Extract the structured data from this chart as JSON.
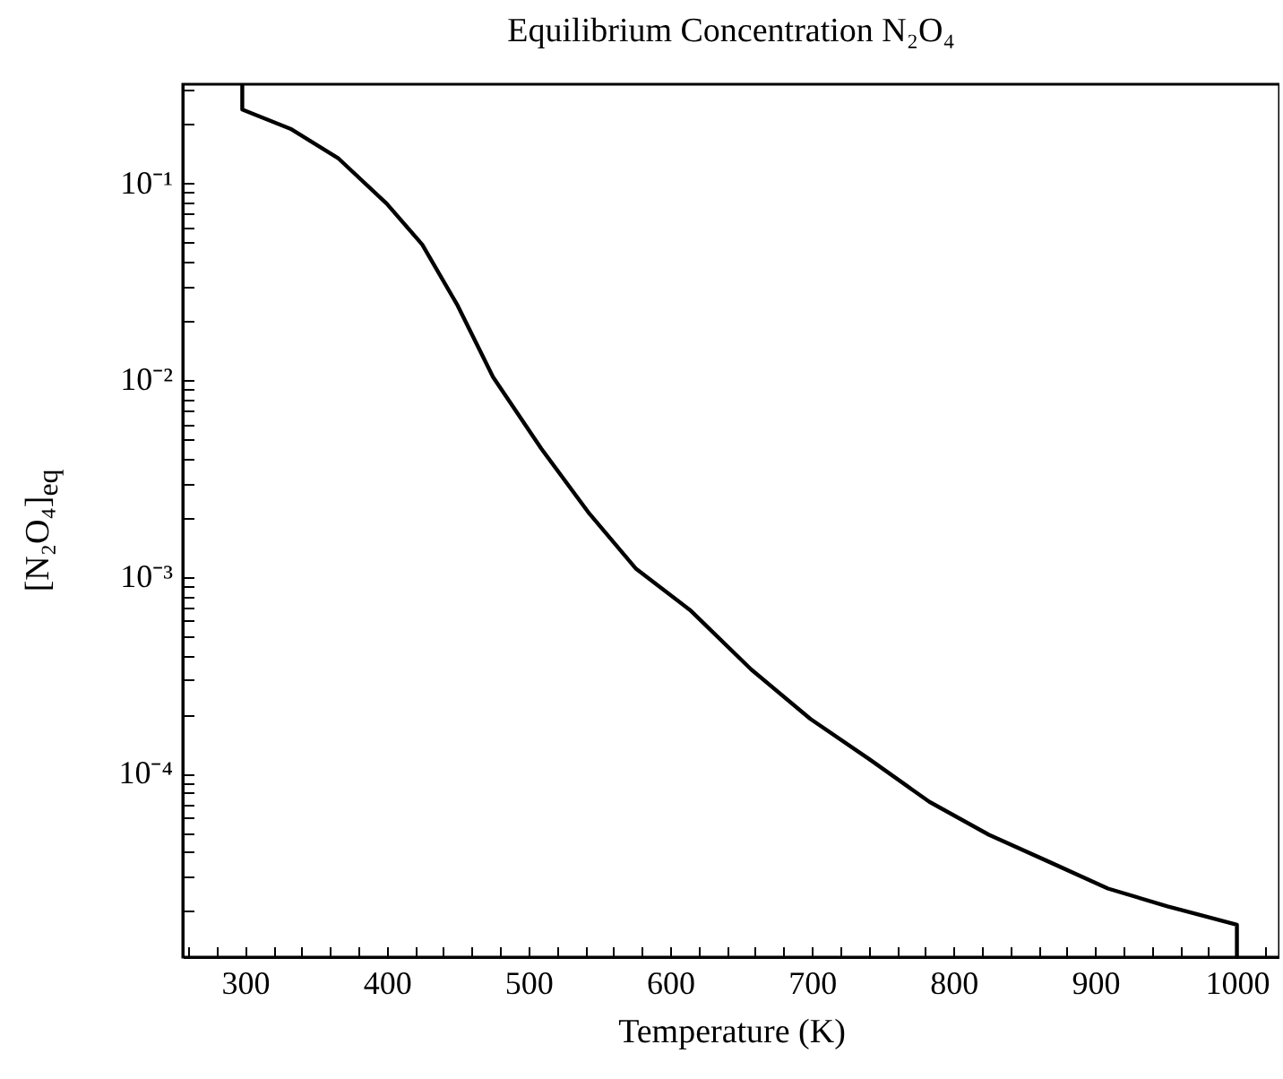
{
  "chart_data": {
    "type": "line",
    "title": "Equilibrium Concentration N₂O₄",
    "xlabel": "Temperature (K)",
    "ylabel": "[N₂O₄]$_{eq}$",
    "x": [
      298,
      298,
      332,
      366,
      400,
      425,
      450,
      475,
      509,
      543,
      576,
      614,
      657,
      699,
      741,
      783,
      825,
      867,
      909,
      951,
      1000,
      1000
    ],
    "series": [
      {
        "color": "#000000",
        "values": [
          0.32,
          0.238,
          0.19,
          0.134,
          0.079,
          0.049,
          0.024,
          0.0104,
          0.0045,
          0.0021,
          0.0011,
          0.00068,
          0.00034,
          0.00019,
          0.000118,
          7.2e-05,
          4.9e-05,
          3.58e-05,
          2.61e-05,
          2.12e-05,
          1.71e-05,
          1.17e-05
        ]
      }
    ],
    "xlim": [
      256,
      1030
    ],
    "ylim": [
      1.17e-05,
      0.32
    ],
    "log": "y",
    "grid": false,
    "marker": "none",
    "line_style": "solid",
    "xticks": [
      {
        "value": 260,
        "label": null
      },
      {
        "value": 280,
        "label": null
      },
      300,
      {
        "value": 320,
        "label": null
      },
      {
        "value": 340,
        "label": null
      },
      {
        "value": 360,
        "label": null
      },
      {
        "value": 380,
        "label": null
      },
      400,
      {
        "value": 420,
        "label": null
      },
      {
        "value": 440,
        "label": null
      },
      {
        "value": 460,
        "label": null
      },
      {
        "value": 480,
        "label": null
      },
      500,
      {
        "value": 520,
        "label": null
      },
      {
        "value": 540,
        "label": null
      },
      {
        "value": 560,
        "label": null
      },
      {
        "value": 580,
        "label": null
      },
      600,
      {
        "value": 620,
        "label": null
      },
      {
        "value": 640,
        "label": null
      },
      {
        "value": 660,
        "label": null
      },
      {
        "value": 680,
        "label": null
      },
      700,
      {
        "value": 720,
        "label": null
      },
      {
        "value": 740,
        "label": null
      },
      {
        "value": 760,
        "label": null
      },
      {
        "value": 780,
        "label": null
      },
      800,
      {
        "value": 820,
        "label": null
      },
      {
        "value": 840,
        "label": null
      },
      {
        "value": 860,
        "label": null
      },
      {
        "value": 880,
        "label": null
      },
      900,
      {
        "value": 920,
        "label": null
      },
      {
        "value": 940,
        "label": null
      },
      {
        "value": 960,
        "label": null
      },
      {
        "value": 980,
        "label": null
      },
      1000,
      {
        "value": 1020,
        "label": null
      }
    ],
    "yticks": [
      {
        "value": 2e-05,
        "label": null
      },
      {
        "value": 3e-05,
        "label": null
      },
      {
        "value": 4e-05,
        "label": null
      },
      {
        "value": 5e-05,
        "label": null
      },
      {
        "value": 6e-05,
        "label": null
      },
      {
        "value": 7e-05,
        "label": null
      },
      {
        "value": 8e-05,
        "label": null
      },
      {
        "value": 9e-05,
        "label": null
      },
      {
        "value": 0.0001,
        "label": "10⁻⁴"
      },
      {
        "value": 0.0002,
        "label": null
      },
      {
        "value": 0.0003,
        "label": null
      },
      {
        "value": 0.0004,
        "label": null
      },
      {
        "value": 0.0005,
        "label": null
      },
      {
        "value": 0.0006,
        "label": null
      },
      {
        "value": 0.0007,
        "label": null
      },
      {
        "value": 0.0008,
        "label": null
      },
      {
        "value": 0.0009,
        "label": null
      },
      {
        "value": 0.001,
        "label": "10⁻³"
      },
      {
        "value": 0.002,
        "label": null
      },
      {
        "value": 0.003,
        "label": null
      },
      {
        "value": 0.004,
        "label": null
      },
      {
        "value": 0.005,
        "label": null
      },
      {
        "value": 0.006,
        "label": null
      },
      {
        "value": 0.007,
        "label": null
      },
      {
        "value": 0.008,
        "label": null
      },
      {
        "value": 0.009,
        "label": null
      },
      {
        "value": 0.01,
        "label": "10⁻²"
      },
      {
        "value": 0.02,
        "label": null
      },
      {
        "value": 0.03,
        "label": null
      },
      {
        "value": 0.04,
        "label": null
      },
      {
        "value": 0.05,
        "label": null
      },
      {
        "value": 0.06,
        "label": null
      },
      {
        "value": 0.07,
        "label": null
      },
      {
        "value": 0.08,
        "label": null
      },
      {
        "value": 0.09,
        "label": null
      },
      {
        "value": 0.1,
        "label": "10⁻¹"
      },
      {
        "value": 0.2,
        "label": null
      },
      {
        "value": 0.3,
        "label": null
      }
    ]
  }
}
